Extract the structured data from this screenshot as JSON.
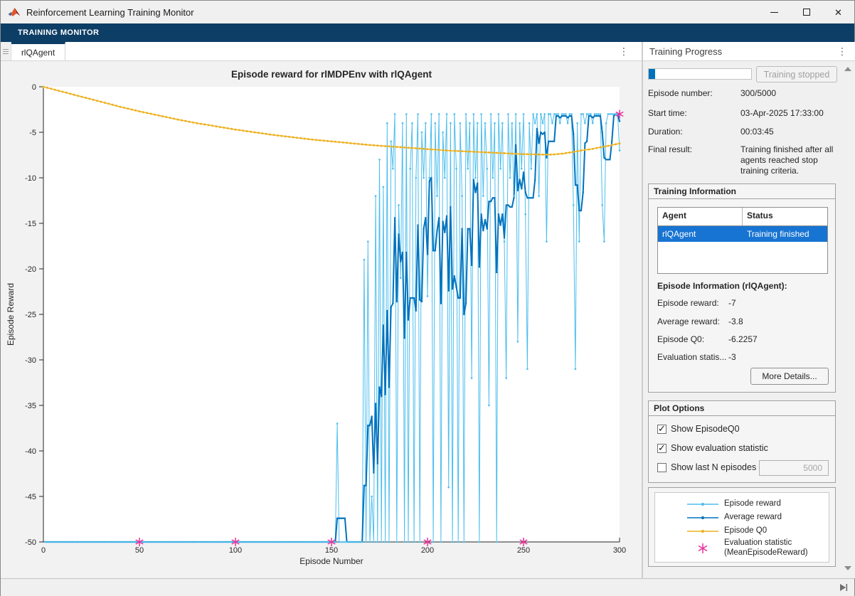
{
  "window": {
    "title": "Reinforcement Learning Training Monitor"
  },
  "ribbon": {
    "label": "TRAINING MONITOR"
  },
  "tabs": {
    "active": "rlQAgent"
  },
  "right_panel": {
    "title": "Training Progress",
    "progress_percent": 6,
    "status_button": "Training stopped",
    "fields": [
      {
        "label": "Episode number:",
        "value": "300/5000"
      },
      {
        "label": "Start time:",
        "value": "03-Apr-2025 17:33:00"
      },
      {
        "label": "Duration:",
        "value": "00:03:45"
      },
      {
        "label": "Final result:",
        "value": "Training finished after all agents reached stop training criteria."
      }
    ]
  },
  "training_information": {
    "title": "Training Information",
    "table": {
      "headers": [
        "Agent",
        "Status"
      ],
      "rows": [
        {
          "agent": "rlQAgent",
          "status": "Training finished",
          "selected": true
        }
      ]
    },
    "episode_info_title": "Episode Information (rlQAgent):",
    "stats": [
      {
        "label": "Episode reward:",
        "value": "-7"
      },
      {
        "label": "Average reward:",
        "value": "-3.8"
      },
      {
        "label": "Episode Q0:",
        "value": "-6.2257"
      },
      {
        "label": "Evaluation statis...",
        "value": "-3"
      }
    ],
    "more_details_label": "More Details..."
  },
  "plot_options": {
    "title": "Plot Options",
    "checkboxes": [
      {
        "label": "Show EpisodeQ0",
        "checked": true
      },
      {
        "label": "Show evaluation statistic",
        "checked": true
      },
      {
        "label": "Show last N episodes",
        "checked": false
      }
    ],
    "last_n_value": "5000"
  },
  "legend": {
    "entries": [
      {
        "label": "Episode reward",
        "label2": "",
        "color": "#4dbeee",
        "marker": "dot-line"
      },
      {
        "label": "Average reward",
        "label2": "",
        "color": "#0072bd",
        "marker": "dot-line"
      },
      {
        "label": "Episode Q0",
        "label2": "",
        "color": "#edb120",
        "marker": "dot-line"
      },
      {
        "label": "Evaluation statistic",
        "label2": "(MeanEpisodeReward)",
        "color": "#e8309a",
        "marker": "asterisk"
      }
    ]
  },
  "chart_data": {
    "type": "line",
    "title": "Episode reward for rlMDPEnv with rlQAgent",
    "xlabel": "Episode Number",
    "ylabel": "Episode Reward",
    "xlim": [
      0,
      300
    ],
    "ylim": [
      -50,
      0
    ],
    "xticks": [
      0,
      50,
      100,
      150,
      200,
      250,
      300
    ],
    "yticks": [
      0,
      -5,
      -10,
      -15,
      -20,
      -25,
      -30,
      -35,
      -40,
      -45,
      -50
    ],
    "grid": false,
    "legend_position": "side-panel",
    "series": [
      {
        "name": "Episode reward",
        "color": "#4dbeee",
        "x_start": 1,
        "values": [
          -50,
          -50,
          -50,
          -50,
          -50,
          -50,
          -50,
          -50,
          -50,
          -50,
          -50,
          -50,
          -50,
          -50,
          -50,
          -50,
          -50,
          -50,
          -50,
          -50,
          -50,
          -50,
          -50,
          -50,
          -50,
          -50,
          -50,
          -50,
          -50,
          -50,
          -50,
          -50,
          -50,
          -50,
          -50,
          -50,
          -50,
          -50,
          -50,
          -50,
          -50,
          -50,
          -50,
          -50,
          -50,
          -50,
          -50,
          -50,
          -50,
          -50,
          -50,
          -50,
          -50,
          -50,
          -50,
          -50,
          -50,
          -50,
          -50,
          -50,
          -50,
          -50,
          -50,
          -50,
          -50,
          -50,
          -50,
          -50,
          -50,
          -50,
          -50,
          -50,
          -50,
          -50,
          -50,
          -50,
          -50,
          -50,
          -50,
          -50,
          -50,
          -50,
          -50,
          -50,
          -50,
          -50,
          -50,
          -50,
          -50,
          -50,
          -50,
          -50,
          -50,
          -50,
          -50,
          -50,
          -50,
          -50,
          -50,
          -50,
          -50,
          -50,
          -50,
          -50,
          -50,
          -50,
          -50,
          -50,
          -50,
          -50,
          -50,
          -50,
          -50,
          -50,
          -50,
          -50,
          -50,
          -50,
          -50,
          -50,
          -50,
          -50,
          -50,
          -50,
          -50,
          -50,
          -50,
          -50,
          -50,
          -50,
          -50,
          -50,
          -50,
          -50,
          -50,
          -50,
          -50,
          -50,
          -50,
          -50,
          -50,
          -50,
          -50,
          -50,
          -50,
          -50,
          -50,
          -50,
          -50,
          -50,
          -50,
          -50,
          -37,
          -50,
          -50,
          -50,
          -50,
          -50,
          -50,
          -50,
          -50,
          -50,
          -50,
          -50,
          -50,
          -50,
          -19,
          -50,
          -17,
          -50,
          -45,
          -50,
          -12,
          -50,
          -8,
          -50,
          -11,
          -50,
          -4,
          -50,
          -6,
          -9,
          -3,
          -50,
          -13,
          -21,
          -4,
          -50,
          -3,
          -50,
          -9,
          -4,
          -50,
          -10,
          -3,
          -50,
          -5,
          -10,
          -4,
          -23,
          -10,
          -3,
          -50,
          -4,
          -12,
          -3,
          -50,
          -5,
          -10,
          -3,
          -44,
          -4,
          -50,
          -3,
          -9,
          -50,
          -4,
          -12,
          -50,
          -3,
          -9,
          -4,
          -32,
          -3,
          -10,
          -4,
          -50,
          -3,
          -12,
          -4,
          -9,
          -35,
          -3,
          -10,
          -4,
          -50,
          -3,
          -9,
          -4,
          -17,
          -32,
          -3,
          -10,
          -4,
          -12,
          -3,
          -28,
          -4,
          -9,
          -3,
          -14,
          -31,
          -4,
          -9,
          -3,
          -4,
          -3,
          -12,
          -3,
          -4,
          -3,
          -17,
          -3,
          -3,
          -4,
          -3,
          -3,
          -3,
          -4,
          -3,
          -3,
          -3,
          -4,
          -3,
          -3,
          -13,
          -31,
          -4,
          -17,
          -3,
          -3,
          -4,
          -3,
          -3,
          -3,
          -4,
          -3,
          -3,
          -3,
          -3,
          -13,
          -17,
          -4,
          -3,
          -3,
          -3,
          -3,
          -3,
          -3,
          -7
        ]
      },
      {
        "name": "Average reward",
        "color": "#0072bd",
        "derived": "moving_average",
        "window": 5,
        "source_series": "Episode reward",
        "final_value": -3.8
      },
      {
        "name": "Episode Q0",
        "color": "#edb120",
        "anchors": [
          [
            0,
            0
          ],
          [
            10,
            -0.55
          ],
          [
            20,
            -1.1
          ],
          [
            30,
            -1.65
          ],
          [
            40,
            -2.2
          ],
          [
            50,
            -2.7
          ],
          [
            60,
            -3.15
          ],
          [
            70,
            -3.6
          ],
          [
            80,
            -4.0
          ],
          [
            90,
            -4.35
          ],
          [
            100,
            -4.7
          ],
          [
            110,
            -5.0
          ],
          [
            120,
            -5.3
          ],
          [
            130,
            -5.55
          ],
          [
            140,
            -5.8
          ],
          [
            150,
            -6.0
          ],
          [
            160,
            -6.2
          ],
          [
            170,
            -6.4
          ],
          [
            180,
            -6.55
          ],
          [
            190,
            -6.7
          ],
          [
            200,
            -6.85
          ],
          [
            210,
            -7.0
          ],
          [
            220,
            -7.1
          ],
          [
            230,
            -7.2
          ],
          [
            240,
            -7.3
          ],
          [
            250,
            -7.4
          ],
          [
            260,
            -7.45
          ],
          [
            265,
            -7.45
          ],
          [
            270,
            -7.35
          ],
          [
            275,
            -7.2
          ],
          [
            280,
            -7.0
          ],
          [
            285,
            -6.85
          ],
          [
            290,
            -6.65
          ],
          [
            295,
            -6.45
          ],
          [
            300,
            -6.23
          ]
        ]
      },
      {
        "name": "Evaluation statistic (MeanEpisodeReward)",
        "color": "#e8309a",
        "marker": "*",
        "points": [
          [
            50,
            -50
          ],
          [
            100,
            -50
          ],
          [
            150,
            -50
          ],
          [
            200,
            -50
          ],
          [
            250,
            -50
          ],
          [
            300,
            -3
          ]
        ]
      }
    ]
  }
}
